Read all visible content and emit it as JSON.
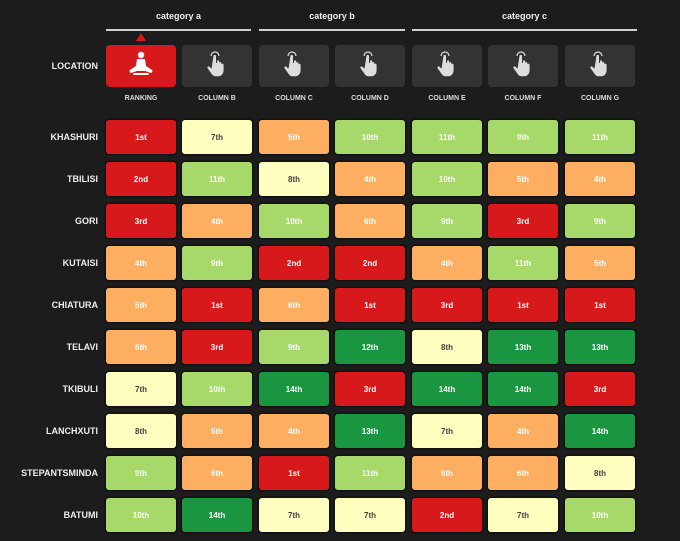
{
  "categories": [
    {
      "label": "category a"
    },
    {
      "label": "category b"
    },
    {
      "label": "category c"
    }
  ],
  "location_label": "LOCATION",
  "columns": [
    {
      "label": "RANKING",
      "icon": "meditation-icon",
      "active": true
    },
    {
      "label": "COLUMN B",
      "icon": "pointer-hand-icon",
      "active": false
    },
    {
      "label": "COLUMN C",
      "icon": "pointer-hand-icon",
      "active": false
    },
    {
      "label": "COLUMN D",
      "icon": "pointer-hand-icon",
      "active": false
    },
    {
      "label": "COLUMN E",
      "icon": "pointer-hand-icon",
      "active": false
    },
    {
      "label": "COLUMN F",
      "icon": "pointer-hand-icon",
      "active": false
    },
    {
      "label": "COLUMN G",
      "icon": "pointer-hand-icon",
      "active": false
    }
  ],
  "sort_indicator": "ascending",
  "rows": [
    {
      "location": "KHASHURI",
      "values": [
        "1st",
        "7th",
        "5th",
        "10th",
        "11th",
        "9th",
        "11th"
      ]
    },
    {
      "location": "TBILISI",
      "values": [
        "2nd",
        "11th",
        "8th",
        "4th",
        "10th",
        "5th",
        "4th"
      ]
    },
    {
      "location": "GORI",
      "values": [
        "3rd",
        "4th",
        "10th",
        "6th",
        "9th",
        "3rd",
        "9th"
      ]
    },
    {
      "location": "KUTAISI",
      "values": [
        "4th",
        "9th",
        "2nd",
        "2nd",
        "4th",
        "11th",
        "5th"
      ]
    },
    {
      "location": "CHIATURA",
      "values": [
        "5th",
        "1st",
        "6th",
        "1st",
        "3rd",
        "1st",
        "1st"
      ]
    },
    {
      "location": "TELAVI",
      "values": [
        "6th",
        "3rd",
        "9th",
        "12th",
        "8th",
        "13th",
        "13th"
      ]
    },
    {
      "location": "TKIBULI",
      "values": [
        "7th",
        "10th",
        "14th",
        "3rd",
        "14th",
        "14th",
        "3rd"
      ]
    },
    {
      "location": "LANCHXUTI",
      "values": [
        "8th",
        "5th",
        "4th",
        "13th",
        "7th",
        "4th",
        "14th"
      ]
    },
    {
      "location": "STEPANTSMINDA",
      "values": [
        "9th",
        "6th",
        "1st",
        "11th",
        "6th",
        "6th",
        "8th"
      ]
    },
    {
      "location": "BATUMI",
      "values": [
        "10th",
        "14th",
        "7th",
        "7th",
        "2nd",
        "7th",
        "10th"
      ]
    }
  ],
  "colors": {
    "rank_1_3": "#d7191c",
    "rank_4_6": "#fdae61",
    "rank_7_8": "#ffffbf",
    "rank_9_11": "#a6d96a",
    "rank_12_14": "#1a9641",
    "active_header": "#d7191c",
    "inactive_header": "#333333"
  }
}
